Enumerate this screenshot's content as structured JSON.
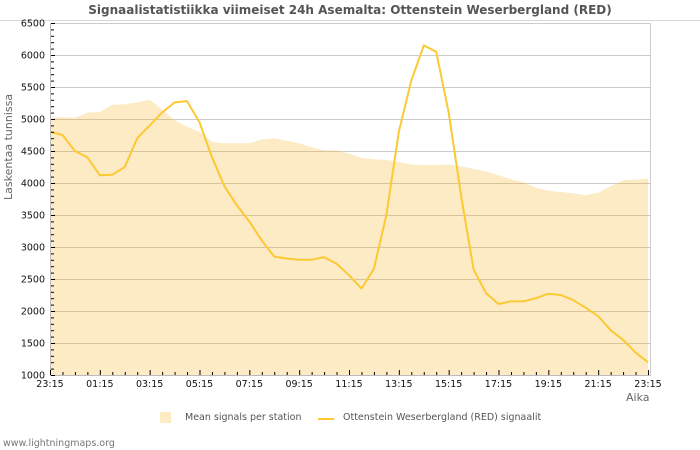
{
  "chart_data": {
    "type": "area+line",
    "title": "Signaalistatistiikka viimeiset 24h Asemalta: Ottenstein Weserbergland (RED)",
    "xlabel": "Aika",
    "ylabel": "Laskentaa tunnissa",
    "ylim": [
      1000,
      6500
    ],
    "yticks": [
      1000,
      1500,
      2000,
      2500,
      3000,
      3500,
      4000,
      4500,
      5000,
      5500,
      6000,
      6500
    ],
    "xticks": [
      "23:15",
      "01:15",
      "03:15",
      "05:15",
      "07:15",
      "09:15",
      "11:15",
      "13:15",
      "15:15",
      "17:15",
      "19:15",
      "21:15",
      "23:15"
    ],
    "grid": true,
    "legend_position": "bottom",
    "x_hours": [
      0,
      0.5,
      1,
      1.5,
      2,
      2.5,
      3,
      3.5,
      4,
      4.5,
      5,
      5.5,
      6,
      6.5,
      7,
      7.5,
      8,
      8.5,
      9,
      9.5,
      10,
      10.5,
      11,
      11.5,
      12,
      12.5,
      13,
      13.5,
      14,
      14.5,
      15,
      15.5,
      16,
      16.5,
      17,
      17.5,
      18,
      18.5,
      19,
      19.5,
      20,
      20.5,
      21,
      21.5,
      22,
      22.5,
      23,
      23.5,
      24
    ],
    "series": [
      {
        "name": "Mean signals per station",
        "type": "area",
        "color": "#fdebc6",
        "values": [
          5020,
          5030,
          5020,
          5100,
          5110,
          5220,
          5230,
          5260,
          5300,
          5150,
          4980,
          4880,
          4800,
          4640,
          4620,
          4620,
          4620,
          4680,
          4700,
          4660,
          4620,
          4560,
          4510,
          4510,
          4460,
          4390,
          4370,
          4360,
          4330,
          4290,
          4280,
          4280,
          4290,
          4260,
          4220,
          4180,
          4120,
          4060,
          4010,
          3930,
          3880,
          3860,
          3840,
          3810,
          3850,
          3950,
          4040,
          4050,
          4070
        ]
      },
      {
        "name": "Ottenstein Weserbergland (RED) signaalit",
        "type": "line",
        "color": "#fcc933",
        "values": [
          4800,
          4750,
          4500,
          4400,
          4120,
          4130,
          4250,
          4700,
          4900,
          5100,
          5260,
          5280,
          4950,
          4400,
          3950,
          3650,
          3400,
          3100,
          2850,
          2820,
          2800,
          2800,
          2840,
          2740,
          2560,
          2350,
          2660,
          3500,
          4800,
          5600,
          6150,
          6050,
          5100,
          3800,
          2650,
          2280,
          2110,
          2150,
          2150,
          2200,
          2270,
          2250,
          2170,
          2050,
          1920,
          1700,
          1550,
          1350,
          1200
        ]
      }
    ]
  },
  "header": {
    "title": "Signaalistatistiikka viimeiset 24h Asemalta: Ottenstein Weserbergland (RED)"
  },
  "axes": {
    "ylabel": "Laskentaa tunnissa",
    "xlabel": "Aika"
  },
  "legend": {
    "items": [
      {
        "label": "Mean signals per station",
        "color": "#fdebc6"
      },
      {
        "label": "Ottenstein Weserbergland (RED) signaalit",
        "color": "#fcc933"
      }
    ]
  },
  "footer": {
    "text": "www.lightningmaps.org"
  },
  "colors": {
    "area_fill": "#fdebc6",
    "line": "#fcc933",
    "grid_white": "#cccccc",
    "grid_over_area": "#d8c49a",
    "frame": "#cccccc"
  }
}
